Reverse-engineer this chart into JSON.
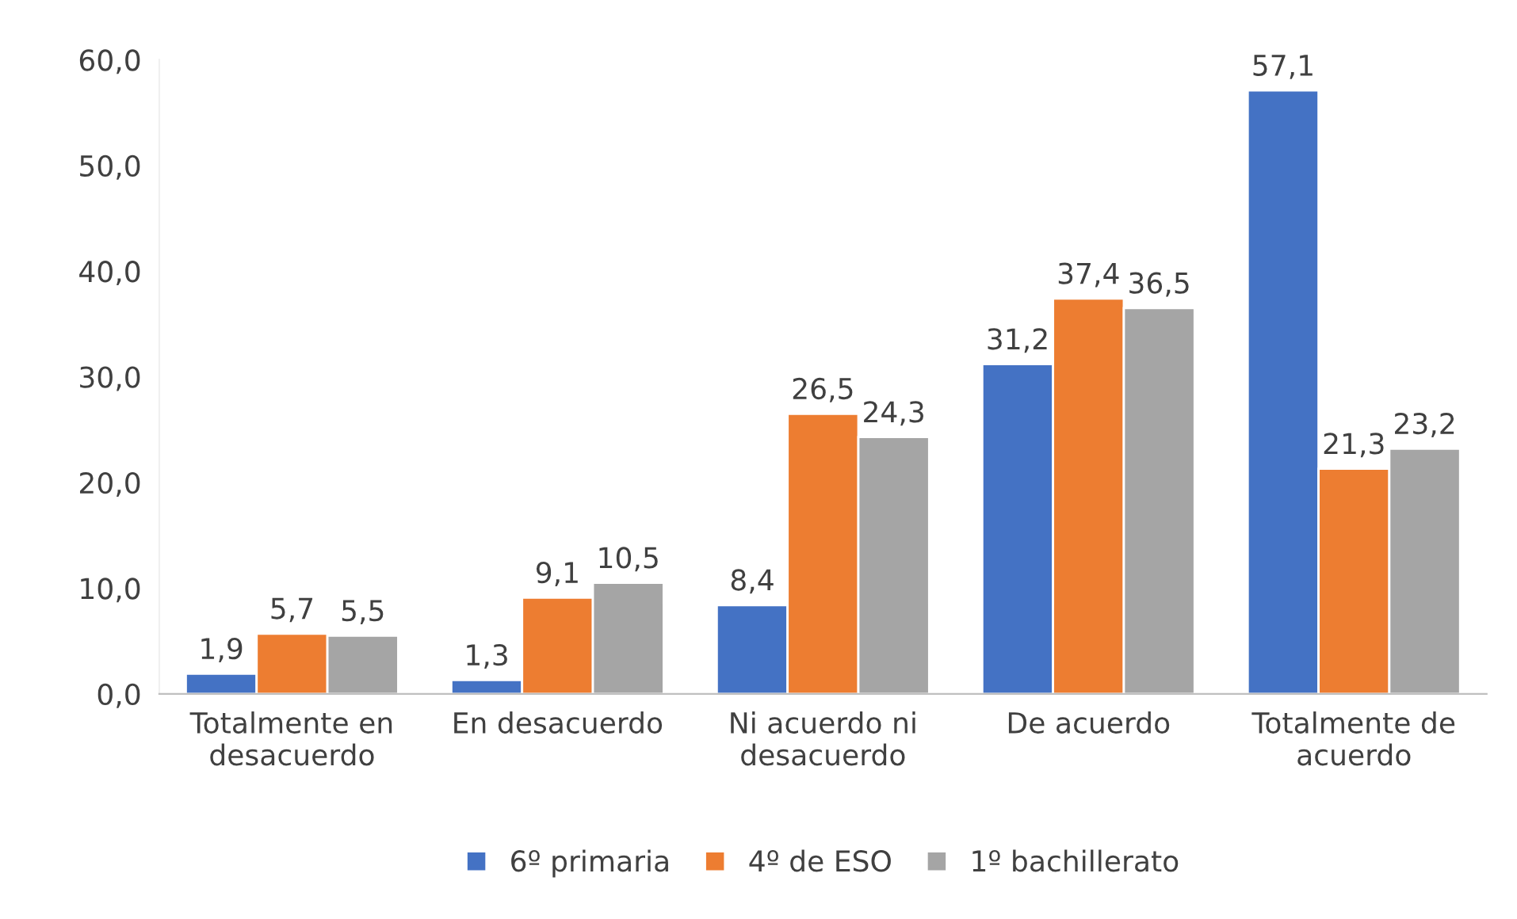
{
  "chart_data": {
    "type": "bar",
    "categories": [
      "Totalmente en\ndesacuerdo",
      "En desacuerdo",
      "Ni acuerdo ni\ndesacuerdo",
      "De acuerdo",
      "Totalmente de\nacuerdo"
    ],
    "series": [
      {
        "name": "6º primaria",
        "color": "#4472c4",
        "values": [
          1.9,
          1.3,
          8.4,
          31.2,
          57.1
        ],
        "value_labels": [
          "1,9",
          "1,3",
          "8,4",
          "31,2",
          "57,1"
        ]
      },
      {
        "name": "4º de ESO",
        "color": "#ed7d31",
        "values": [
          5.7,
          9.1,
          26.5,
          37.4,
          21.3
        ],
        "value_labels": [
          "5,7",
          "9,1",
          "26,5",
          "37,4",
          "21,3"
        ]
      },
      {
        "name": "1º bachillerato",
        "color": "#a5a5a5",
        "values": [
          5.5,
          10.5,
          24.3,
          36.5,
          23.2
        ],
        "value_labels": [
          "5,5",
          "10,5",
          "24,3",
          "36,5",
          "23,2"
        ]
      }
    ],
    "ylim": [
      0,
      60
    ],
    "yticks": [
      {
        "value": 0,
        "label": "0,0"
      },
      {
        "value": 10,
        "label": "10,0"
      },
      {
        "value": 20,
        "label": "20,0"
      },
      {
        "value": 30,
        "label": "30,0"
      },
      {
        "value": 40,
        "label": "40,0"
      },
      {
        "value": 50,
        "label": "50,0"
      },
      {
        "value": 60,
        "label": "60,0"
      }
    ],
    "grid": false,
    "legend": "bottom"
  }
}
